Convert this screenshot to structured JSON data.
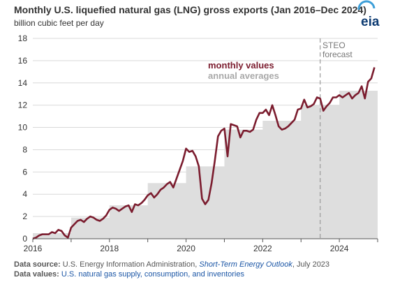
{
  "header": {
    "title": "Monthly U.S. liquefied natural gas (LNG) gross exports (Jan 2016–Dec 2024)",
    "subtitle": "billion cubic feet per day",
    "logo": "eia"
  },
  "footer": {
    "source_label": "Data source:",
    "source_text": "U.S. Energy Information Administration,",
    "source_link": "Short-Term Energy Outlook",
    "source_date": ", July 2023",
    "values_label": "Data values:",
    "values_link": "U.S. natural gas supply, consumption, and inventories"
  },
  "colors": {
    "monthly": "#7b1c2e",
    "annual_fill": "#dedede",
    "annual_label": "#a9a9a9",
    "forecast_line": "#999999"
  },
  "chart_data": {
    "type": "line",
    "title": "Monthly U.S. liquefied natural gas (LNG) gross exports (Jan 2016–Dec 2024)",
    "ylabel": "billion cubic feet per day",
    "xlim": [
      2016,
      2025
    ],
    "ylim": [
      0,
      18
    ],
    "yticks": [
      0,
      2,
      4,
      6,
      8,
      10,
      12,
      14,
      16,
      18
    ],
    "xticks": [
      2016,
      2018,
      2020,
      2022,
      2024
    ],
    "grid": "horizontal",
    "forecast_start": 2023.5,
    "forecast_label_1": "STEO",
    "forecast_label_2": "forecast",
    "series": [
      {
        "name": "monthly values",
        "kind": "line",
        "start_year": 2016,
        "values": [
          0.0,
          0.1,
          0.3,
          0.4,
          0.4,
          0.4,
          0.6,
          0.5,
          0.8,
          0.7,
          0.3,
          0.1,
          1.0,
          1.3,
          1.6,
          1.7,
          1.5,
          1.8,
          2.0,
          1.9,
          1.7,
          1.6,
          1.8,
          2.1,
          2.6,
          2.8,
          2.7,
          2.5,
          2.7,
          2.9,
          3.0,
          2.4,
          3.1,
          3.0,
          3.2,
          3.5,
          3.9,
          4.1,
          3.7,
          4.0,
          4.4,
          4.6,
          4.9,
          5.1,
          4.6,
          5.4,
          6.2,
          7.0,
          8.1,
          7.8,
          7.9,
          7.4,
          6.5,
          3.6,
          3.1,
          3.5,
          5.0,
          7.0,
          9.2,
          9.7,
          9.9,
          7.4,
          10.3,
          10.2,
          10.1,
          9.1,
          9.7,
          9.7,
          9.6,
          9.8,
          10.7,
          11.3,
          11.3,
          11.6,
          11.1,
          12.0,
          11.1,
          10.1,
          9.8,
          9.9,
          10.1,
          10.4,
          10.7,
          11.6,
          11.7,
          12.5,
          11.8,
          11.9,
          12.1,
          12.7,
          12.6,
          11.5,
          11.9,
          12.2,
          12.7,
          12.7,
          12.9,
          12.7,
          12.9,
          13.1,
          12.6,
          12.9,
          13.1,
          13.7,
          12.6,
          14.1,
          14.4,
          15.4
        ]
      },
      {
        "name": "annual averages",
        "kind": "step-area",
        "years": [
          2016,
          2017,
          2018,
          2019,
          2020,
          2021,
          2022,
          2023,
          2024
        ],
        "values": [
          0.5,
          1.9,
          3.0,
          5.0,
          6.5,
          9.8,
          10.6,
          12.0,
          13.3
        ]
      }
    ]
  }
}
